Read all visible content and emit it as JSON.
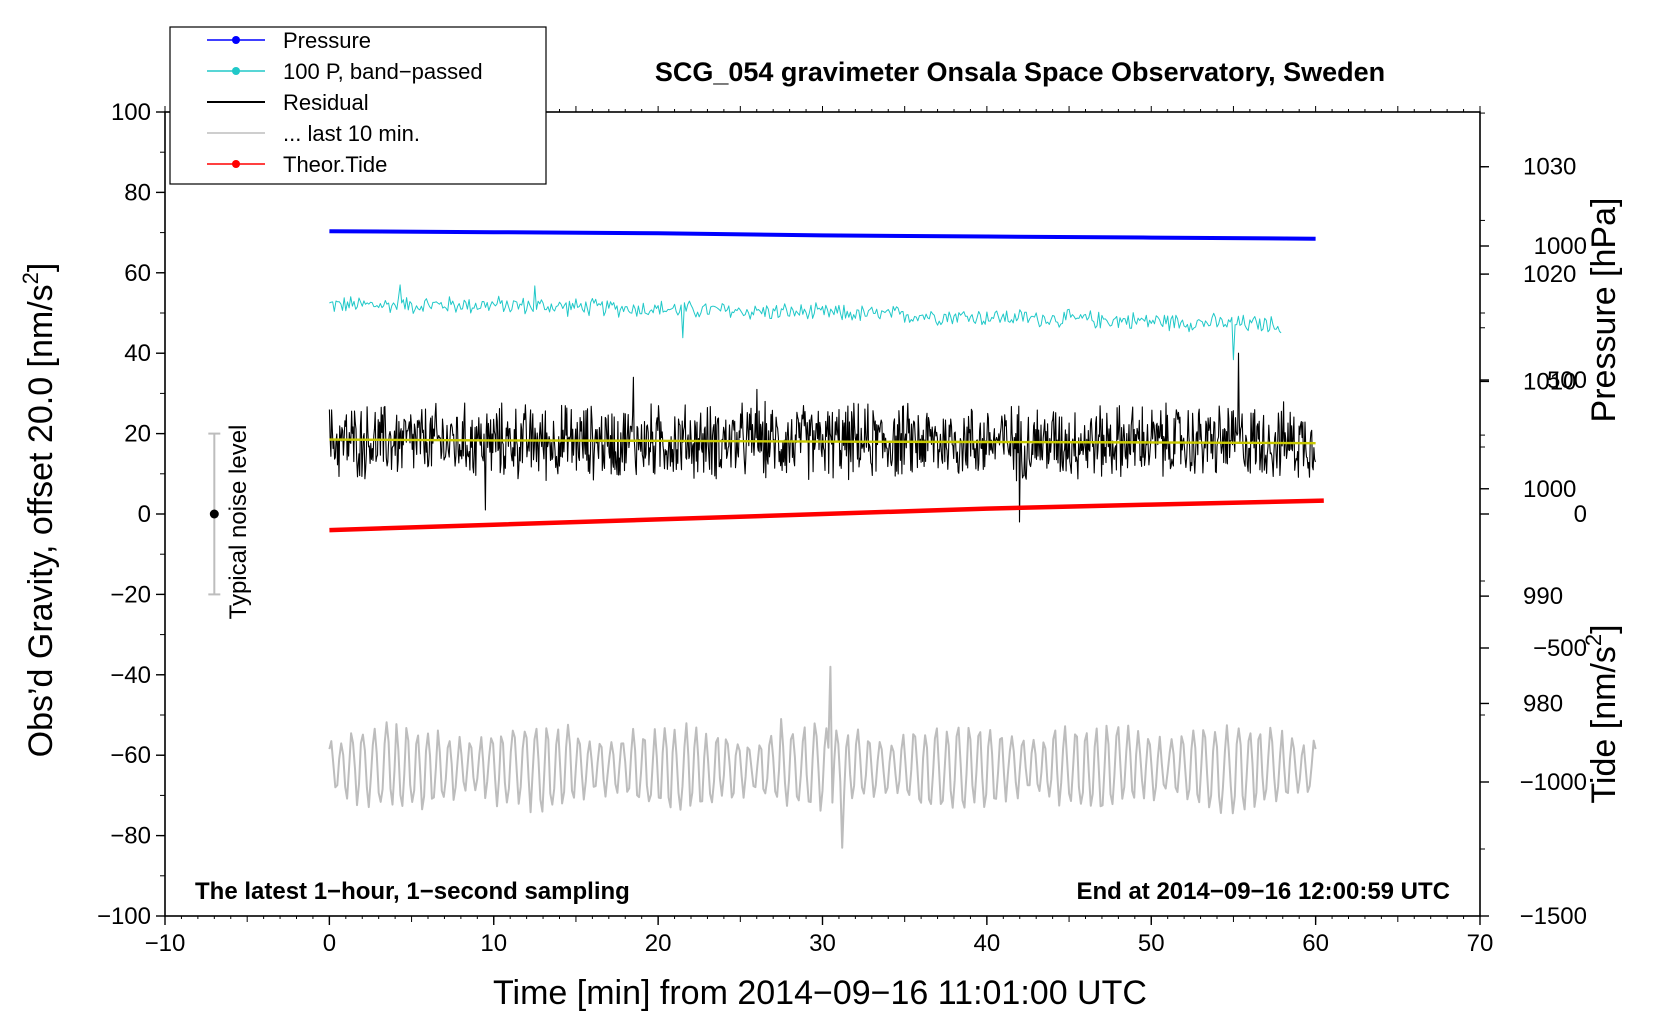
{
  "chart_data": {
    "type": "line",
    "title": "SCG_054 gravimeter Onsala Space Observatory, Sweden",
    "xlabel": "Time [min] from 2014−09−16 11:01:00 UTC",
    "ylabel_left": "Obs’d Gravity, offset 20.0 [nm/s",
    "ylabel_left_sup": "2",
    "ylabel_left_close": "]",
    "ylabel_right_pressure": "Pressure [hPa]",
    "ylabel_right_tide": "Tide [nm/s",
    "ylabel_right_tide_sup": "2",
    "ylabel_right_tide_close": "]",
    "xlim": [
      -10,
      70
    ],
    "ylim_left": [
      -100,
      100
    ],
    "ylim_pressure": [
      960.2,
      1035.1
    ],
    "ylim_tide": [
      -1500,
      1500
    ],
    "x_ticks": [
      "−10",
      "0",
      "10",
      "20",
      "30",
      "40",
      "50",
      "60",
      "70"
    ],
    "y_ticks_left": [
      "100",
      "80",
      "60",
      "40",
      "20",
      "0",
      "−20",
      "−40",
      "−60",
      "−80",
      "−100"
    ],
    "y_ticks_pressure": [
      "1030",
      "1020",
      "1010",
      "1000",
      "990",
      "980"
    ],
    "y_ticks_tide": [
      "1000",
      "500",
      "0",
      "−500",
      "−1000",
      "−1500"
    ],
    "annotations": {
      "bottom_left": "The latest 1−hour, 1−second sampling",
      "bottom_right": "End at 2014−09−16 12:00:59 UTC",
      "noise_label": "Typical noise level"
    },
    "noise_bar": {
      "x": -7,
      "center": 0,
      "low": -20,
      "high": 20
    },
    "legend": [
      {
        "label": "Pressure",
        "color": "#0000ff",
        "marker": true
      },
      {
        "label": "100 P, band−passed",
        "color": "#20c8c8",
        "marker": true
      },
      {
        "label": "Residual",
        "color": "#000000",
        "marker": false
      },
      {
        "label": "... last 10 min.",
        "color": "#bdbdbd",
        "marker": false
      },
      {
        "label": "Theor.Tide",
        "color": "#ff0000",
        "marker": true
      }
    ],
    "series": [
      {
        "name": "Pressure",
        "axis": "pressure",
        "color": "#0000ff",
        "x": [
          0,
          10,
          20,
          30,
          40,
          50,
          60
        ],
        "values": [
          1024.0,
          1023.9,
          1023.8,
          1023.6,
          1023.5,
          1023.4,
          1023.3
        ]
      },
      {
        "name": "100 P, band−passed",
        "axis": "left",
        "color": "#20c8c8",
        "x": [
          0,
          10,
          20,
          30,
          40,
          50,
          58
        ],
        "values": [
          52,
          52,
          51,
          50,
          49,
          48,
          47
        ],
        "amplitude": 2.2,
        "spikes": [
          [
            4.3,
            5
          ],
          [
            12.5,
            5
          ],
          [
            21.5,
            -7
          ],
          [
            55,
            -9
          ]
        ]
      },
      {
        "name": "Residual",
        "axis": "left",
        "color": "#000000",
        "x": [
          0,
          60
        ],
        "values": [
          18,
          18
        ],
        "amplitude": 9,
        "spikes": [
          [
            9.5,
            -17
          ],
          [
            18.5,
            16
          ],
          [
            26,
            13
          ],
          [
            42,
            -20
          ],
          [
            55.3,
            22
          ]
        ]
      },
      {
        "name": "Residual (smoothed)",
        "axis": "left",
        "color": "#c8c800",
        "x": [
          0,
          10,
          20,
          30,
          40,
          50,
          60
        ],
        "values": [
          18.5,
          18.3,
          18.2,
          18,
          17.9,
          17.8,
          17.6
        ]
      },
      {
        "name": "... last 10 min.",
        "axis": "left",
        "color": "#bdbdbd",
        "x": [
          0,
          60
        ],
        "values": [
          -63,
          -63
        ],
        "amplitude": 9,
        "spikes": [
          [
            30.5,
            25
          ],
          [
            31.2,
            -20
          ],
          [
            27.5,
            12
          ]
        ]
      },
      {
        "name": "Theor.Tide",
        "axis": "tide",
        "color": "#ff0000",
        "x": [
          0,
          10,
          20,
          30,
          40,
          50,
          60.5
        ],
        "values": [
          -60,
          -40,
          -20,
          0,
          20,
          35,
          50
        ]
      }
    ]
  }
}
